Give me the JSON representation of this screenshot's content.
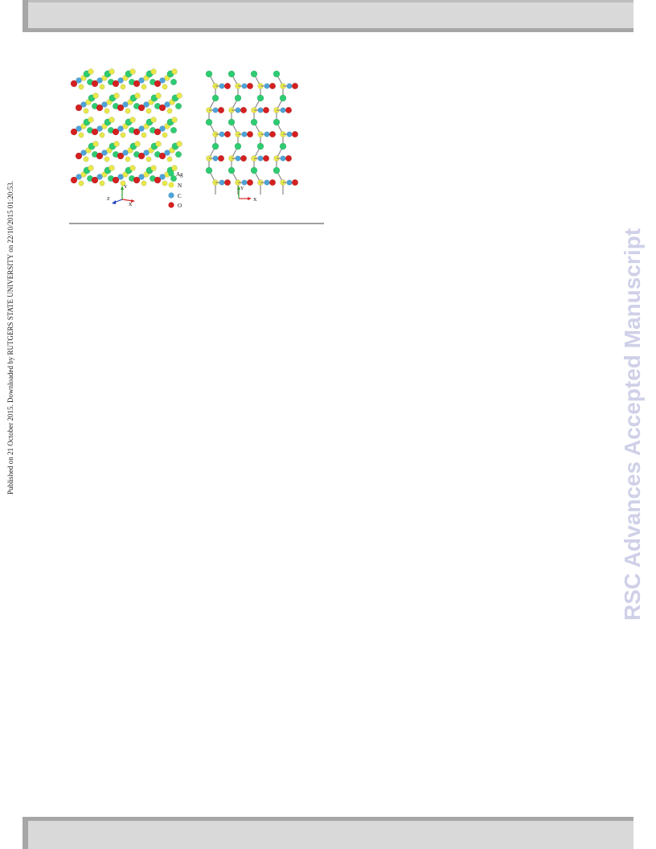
{
  "published_notice": "Published on 21 October 2015. Downloaded by RUTGERS STATE UNIVERSITY on 22/10/2015 01:20:53.",
  "watermark": "RSC Advances Accepted Manuscript",
  "figure": {
    "legend": [
      {
        "label": "Ag",
        "color": "#2ecc71"
      },
      {
        "label": "N",
        "color": "#e8e84a"
      },
      {
        "label": "C",
        "color": "#4ea3d8"
      },
      {
        "label": "O",
        "color": "#d42020"
      }
    ],
    "axes_left": {
      "y": "Y",
      "x": "X",
      "z": "Z"
    },
    "axes_right": {
      "y": "Y",
      "x": "X"
    }
  }
}
